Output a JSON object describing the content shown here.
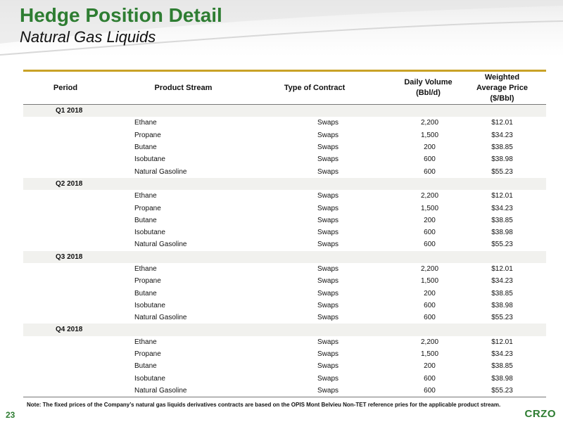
{
  "header": {
    "title": "Hedge Position Detail",
    "subtitle": "Natural Gas Liquids"
  },
  "table": {
    "columns": {
      "period": "Period",
      "product_stream": "Product Stream",
      "contract_type": "Type of Contract",
      "volume_line1": "Daily Volume",
      "volume_line2": "(Bbl/d)",
      "price_line1": "Weighted",
      "price_line2": "Average Price",
      "price_line3": "($/Bbl)"
    },
    "groups": [
      {
        "period": "Q1 2018",
        "rows": [
          {
            "stream": "Ethane",
            "contract": "Swaps",
            "volume": "2,200",
            "price": "$12.01"
          },
          {
            "stream": "Propane",
            "contract": "Swaps",
            "volume": "1,500",
            "price": "$34.23"
          },
          {
            "stream": "Butane",
            "contract": "Swaps",
            "volume": "200",
            "price": "$38.85"
          },
          {
            "stream": "Isobutane",
            "contract": "Swaps",
            "volume": "600",
            "price": "$38.98"
          },
          {
            "stream": "Natural Gasoline",
            "contract": "Swaps",
            "volume": "600",
            "price": "$55.23"
          }
        ]
      },
      {
        "period": "Q2 2018",
        "rows": [
          {
            "stream": "Ethane",
            "contract": "Swaps",
            "volume": "2,200",
            "price": "$12.01"
          },
          {
            "stream": "Propane",
            "contract": "Swaps",
            "volume": "1,500",
            "price": "$34.23"
          },
          {
            "stream": "Butane",
            "contract": "Swaps",
            "volume": "200",
            "price": "$38.85"
          },
          {
            "stream": "Isobutane",
            "contract": "Swaps",
            "volume": "600",
            "price": "$38.98"
          },
          {
            "stream": "Natural Gasoline",
            "contract": "Swaps",
            "volume": "600",
            "price": "$55.23"
          }
        ]
      },
      {
        "period": "Q3 2018",
        "rows": [
          {
            "stream": "Ethane",
            "contract": "Swaps",
            "volume": "2,200",
            "price": "$12.01"
          },
          {
            "stream": "Propane",
            "contract": "Swaps",
            "volume": "1,500",
            "price": "$34.23"
          },
          {
            "stream": "Butane",
            "contract": "Swaps",
            "volume": "200",
            "price": "$38.85"
          },
          {
            "stream": "Isobutane",
            "contract": "Swaps",
            "volume": "600",
            "price": "$38.98"
          },
          {
            "stream": "Natural Gasoline",
            "contract": "Swaps",
            "volume": "600",
            "price": "$55.23"
          }
        ]
      },
      {
        "period": "Q4 2018",
        "rows": [
          {
            "stream": "Ethane",
            "contract": "Swaps",
            "volume": "2,200",
            "price": "$12.01"
          },
          {
            "stream": "Propane",
            "contract": "Swaps",
            "volume": "1,500",
            "price": "$34.23"
          },
          {
            "stream": "Butane",
            "contract": "Swaps",
            "volume": "200",
            "price": "$38.85"
          },
          {
            "stream": "Isobutane",
            "contract": "Swaps",
            "volume": "600",
            "price": "$38.98"
          },
          {
            "stream": "Natural Gasoline",
            "contract": "Swaps",
            "volume": "600",
            "price": "$55.23"
          }
        ]
      }
    ]
  },
  "footer": {
    "note": "Note: The fixed prices of the Company’s natural gas liquids derivatives contracts are based on the OPIS Mont Belvieu Non-TET reference pries for the applicable product stream.",
    "page_number": "23",
    "logo_text": "CRZO"
  },
  "colors": {
    "title_green": "#2e7d32",
    "rule_gold": "#c9a227",
    "period_band": "#f1f1ee"
  }
}
